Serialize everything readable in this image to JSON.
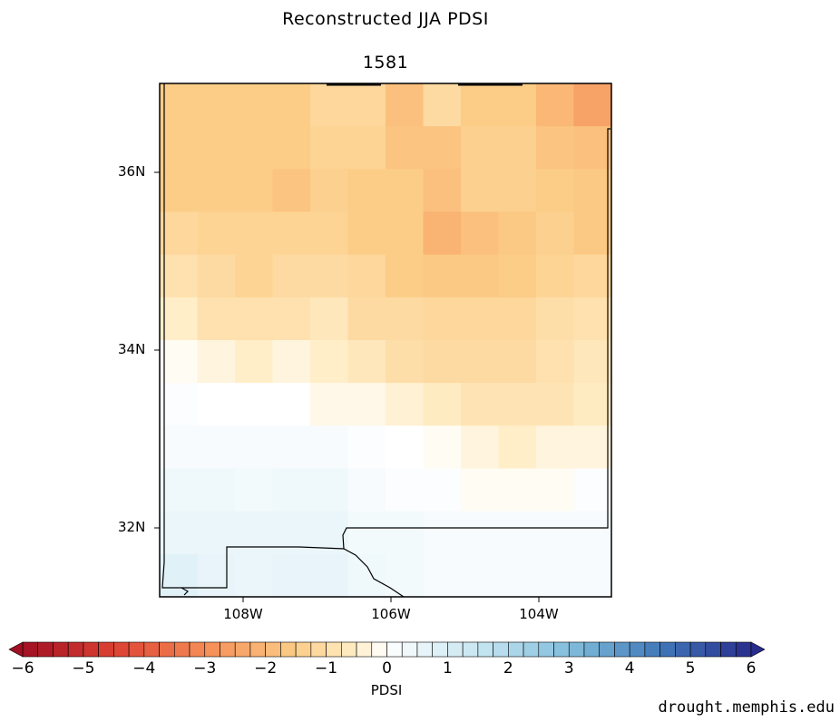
{
  "title": "Reconstructed JJA PDSI",
  "year": "1581",
  "lat_labels": [
    "36N",
    "34N",
    "32N"
  ],
  "lon_labels": [
    "108W",
    "106W",
    "104W"
  ],
  "colorbar": {
    "label": "PDSI",
    "ticks": [
      "−6",
      "−5",
      "−4",
      "−3",
      "−2",
      "−1",
      "0",
      "1",
      "2",
      "3",
      "4",
      "5",
      "6"
    ],
    "min": -6,
    "max": 6,
    "step": 0.25
  },
  "credit": "drought.memphis.edu",
  "grid_values": [
    [
      -1.5,
      -1.5,
      -1.5,
      -1.5,
      -1.2,
      -1.2,
      -1.8,
      -1.1,
      -1.5,
      -1.5,
      -2.0,
      -2.5
    ],
    [
      -1.5,
      -1.5,
      -1.5,
      -1.5,
      -1.3,
      -1.3,
      -1.7,
      -1.7,
      -1.4,
      -1.4,
      -1.7,
      -1.8
    ],
    [
      -1.5,
      -1.5,
      -1.5,
      -1.7,
      -1.4,
      -1.5,
      -1.5,
      -1.8,
      -1.4,
      -1.4,
      -1.5,
      -1.6
    ],
    [
      -1.2,
      -1.3,
      -1.3,
      -1.3,
      -1.3,
      -1.5,
      -1.5,
      -2.1,
      -1.8,
      -1.6,
      -1.4,
      -1.6
    ],
    [
      -0.9,
      -1.1,
      -1.3,
      -1.1,
      -1.1,
      -1.2,
      -1.5,
      -1.6,
      -1.6,
      -1.5,
      -1.3,
      -1.2
    ],
    [
      -0.5,
      -0.9,
      -0.9,
      -0.9,
      -0.7,
      -1.1,
      -1.1,
      -1.2,
      -1.2,
      -1.2,
      -1.0,
      -0.9
    ],
    [
      -0.1,
      -0.3,
      -0.5,
      -0.3,
      -0.5,
      -0.7,
      -1.0,
      -1.1,
      -1.1,
      -1.1,
      -0.9,
      -0.7
    ],
    [
      0.1,
      0.0,
      0.0,
      0.0,
      -0.2,
      -0.2,
      -0.4,
      -0.6,
      -0.8,
      -0.8,
      -0.8,
      -0.6
    ],
    [
      0.2,
      0.2,
      0.2,
      0.2,
      0.2,
      0.1,
      0.0,
      -0.1,
      -0.3,
      -0.5,
      -0.3,
      -0.3
    ],
    [
      0.4,
      0.4,
      0.3,
      0.4,
      0.4,
      0.2,
      0.1,
      0.1,
      -0.1,
      -0.1,
      -0.1,
      0.1
    ],
    [
      0.5,
      0.5,
      0.5,
      0.5,
      0.5,
      0.3,
      0.3,
      0.2,
      0.2,
      0.2,
      0.2,
      0.2
    ],
    [
      0.8,
      0.6,
      0.5,
      0.6,
      0.6,
      0.4,
      0.3,
      0.2,
      0.2,
      0.2,
      0.2,
      0.2
    ]
  ]
}
